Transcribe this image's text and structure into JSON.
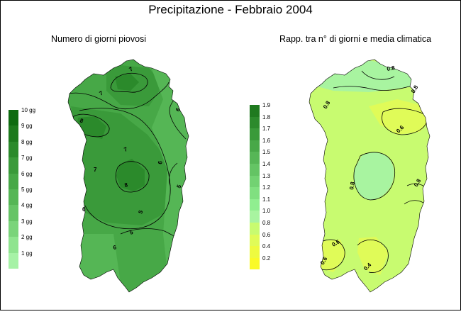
{
  "title": "Precipitazione - Febbraio 2004",
  "left_map": {
    "subtitle": "Numero di giorni piovosi",
    "legend": [
      {
        "label": "10 gg",
        "color": "#0e6b10"
      },
      {
        "label": "9 gg",
        "color": "#1d7a1d"
      },
      {
        "label": "8 gg",
        "color": "#2b8a2b"
      },
      {
        "label": "7 gg",
        "color": "#3a9a3a"
      },
      {
        "label": "6 gg",
        "color": "#47a847"
      },
      {
        "label": "5 gg",
        "color": "#55b655"
      },
      {
        "label": "4 gg",
        "color": "#66c466"
      },
      {
        "label": "3 gg",
        "color": "#7ad47a"
      },
      {
        "label": "2 gg",
        "color": "#8fe48f"
      },
      {
        "label": "1 gg",
        "color": "#a6f2a6"
      }
    ],
    "contour_labels": [
      "7",
      "7",
      "8",
      "7",
      "6",
      "7",
      "6",
      "5",
      "8",
      "6",
      "5",
      "5",
      "6"
    ]
  },
  "right_map": {
    "subtitle": "Rapp. tra n° di giorni e media climatica",
    "legend": [
      {
        "label": "1.9",
        "color": "#1f7a1f"
      },
      {
        "label": "1.8",
        "color": "#2c8a2c"
      },
      {
        "label": "1.7",
        "color": "#3a9a3a"
      },
      {
        "label": "1.6",
        "color": "#48a848"
      },
      {
        "label": "1.5",
        "color": "#56b656"
      },
      {
        "label": "1.4",
        "color": "#64c464"
      },
      {
        "label": "1.3",
        "color": "#72d272"
      },
      {
        "label": "1.2",
        "color": "#80e080"
      },
      {
        "label": "1.1",
        "color": "#90ee90"
      },
      {
        "label": "1.0",
        "color": "#a8f4a0"
      },
      {
        "label": "0.8",
        "color": "#c8fb70"
      },
      {
        "label": "0.6",
        "color": "#e0fb58"
      },
      {
        "label": "0.4",
        "color": "#eefa40"
      },
      {
        "label": "0.2",
        "color": "#fafa28"
      }
    ],
    "contour_labels": [
      "0.8",
      "0.8",
      "0.8",
      "0.6",
      "0.8",
      "0.8",
      "0.6",
      "0.4",
      "0.6"
    ]
  }
}
